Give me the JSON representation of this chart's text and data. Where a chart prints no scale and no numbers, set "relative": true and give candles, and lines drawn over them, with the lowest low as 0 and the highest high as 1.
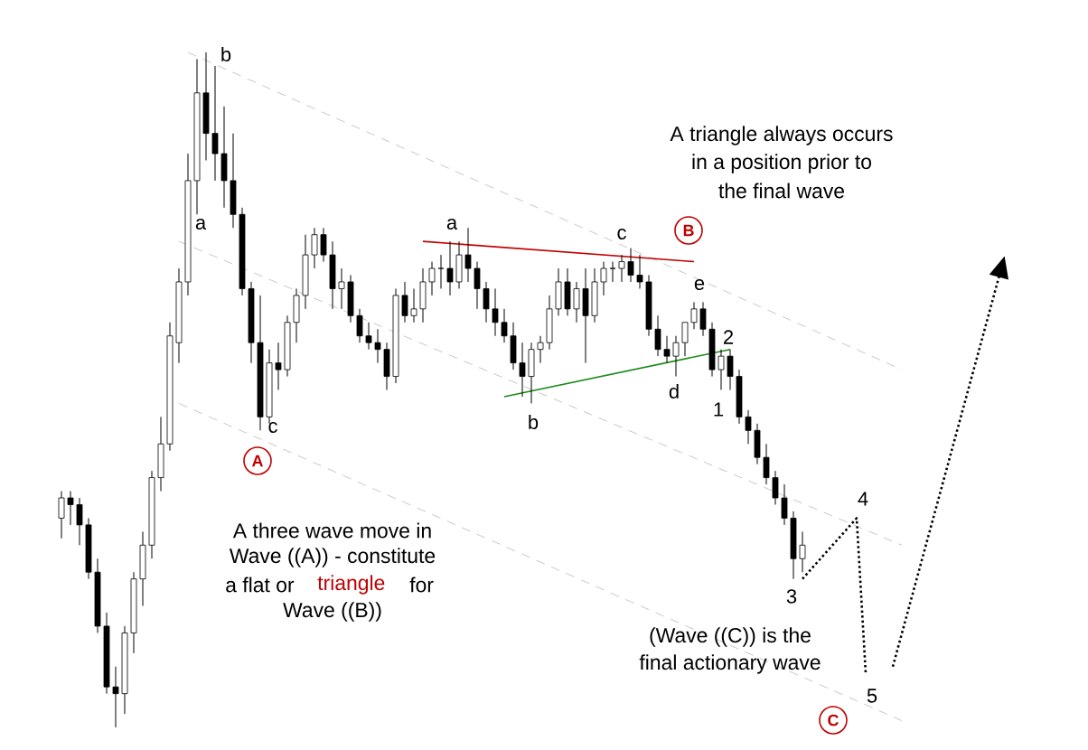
{
  "chart_data": {
    "type": "candlestick",
    "relative": true,
    "categories": [
      null,
      null,
      null,
      null,
      null,
      null,
      null,
      null,
      null,
      null,
      null,
      null,
      null,
      null,
      null,
      null,
      null,
      null,
      null,
      null,
      null,
      null,
      null,
      null,
      null,
      null,
      null,
      null,
      null,
      null,
      null,
      null,
      null,
      null,
      null,
      null,
      null,
      null,
      null,
      null,
      null,
      null,
      null,
      null,
      null,
      null,
      null,
      null,
      null,
      null,
      null,
      null,
      null,
      null,
      null,
      null,
      null,
      null,
      null,
      null,
      null,
      null,
      null,
      null,
      null,
      null,
      null,
      null,
      null,
      null,
      null,
      null,
      null,
      null,
      null,
      null,
      null,
      null,
      null,
      null,
      null,
      null,
      null,
      null,
      null,
      null,
      null,
      null,
      null,
      null,
      null,
      null,
      null,
      null,
      null,
      null,
      null,
      null,
      null,
      null,
      null,
      null,
      null,
      null,
      null
    ],
    "ohlc": [
      [
        0.31,
        0.35,
        0.28,
        0.34
      ],
      [
        0.34,
        0.35,
        0.3,
        0.33
      ],
      [
        0.33,
        0.34,
        0.27,
        0.3
      ],
      [
        0.3,
        0.31,
        0.22,
        0.23
      ],
      [
        0.23,
        0.25,
        0.14,
        0.15
      ],
      [
        0.15,
        0.17,
        0.05,
        0.06
      ],
      [
        0.06,
        0.09,
        0,
        0.05
      ],
      [
        0.05,
        0.15,
        0.02,
        0.14
      ],
      [
        0.14,
        0.23,
        0.11,
        0.22
      ],
      [
        0.22,
        0.29,
        0.18,
        0.27
      ],
      [
        0.27,
        0.38,
        0.25,
        0.37
      ],
      [
        0.37,
        0.46,
        0.35,
        0.42
      ],
      [
        0.42,
        0.6,
        0.41,
        0.58
      ],
      [
        0.57,
        0.68,
        0.54,
        0.66
      ],
      [
        0.66,
        0.85,
        0.64,
        0.81
      ],
      [
        0.81,
        0.99,
        0.76,
        0.94
      ],
      [
        0.94,
        1,
        0.84,
        0.88
      ],
      [
        0.88,
        0.98,
        0.81,
        0.85
      ],
      [
        0.85,
        0.92,
        0.77,
        0.81
      ],
      [
        0.81,
        0.88,
        0.74,
        0.76
      ],
      [
        0.76,
        0.77,
        0.64,
        0.65
      ],
      [
        0.65,
        0.66,
        0.54,
        0.57
      ],
      [
        0.57,
        0.64,
        0.44,
        0.46
      ],
      [
        0.46,
        0.56,
        0.45,
        0.54
      ],
      [
        0.54,
        0.57,
        0.5,
        0.53
      ],
      [
        0.53,
        0.61,
        0.52,
        0.6
      ],
      [
        0.6,
        0.65,
        0.57,
        0.64
      ],
      [
        0.64,
        0.73,
        0.62,
        0.7
      ],
      [
        0.7,
        0.74,
        0.68,
        0.73
      ],
      [
        0.73,
        0.74,
        0.69,
        0.7
      ],
      [
        0.7,
        0.72,
        0.62,
        0.65
      ],
      [
        0.65,
        0.68,
        0.62,
        0.66
      ],
      [
        0.66,
        0.67,
        0.6,
        0.61
      ],
      [
        0.61,
        0.62,
        0.57,
        0.58
      ],
      [
        0.58,
        0.6,
        0.56,
        0.57
      ],
      [
        0.57,
        0.59,
        0.54,
        0.56
      ],
      [
        0.56,
        0.57,
        0.5,
        0.52
      ],
      [
        0.52,
        0.65,
        0.51,
        0.64
      ],
      [
        0.64,
        0.66,
        0.6,
        0.61
      ],
      [
        0.61,
        0.65,
        0.6,
        0.62
      ],
      [
        0.62,
        0.68,
        0.6,
        0.66
      ],
      [
        0.66,
        0.69,
        0.64,
        0.68
      ],
      [
        0.68,
        0.7,
        0.65,
        0.68
      ],
      [
        0.68,
        0.72,
        0.64,
        0.66
      ],
      [
        0.66,
        0.72,
        0.65,
        0.7
      ],
      [
        0.7,
        0.74,
        0.66,
        0.68
      ],
      [
        0.68,
        0.69,
        0.62,
        0.65
      ],
      [
        0.65,
        0.66,
        0.6,
        0.62
      ],
      [
        0.62,
        0.65,
        0.58,
        0.6
      ],
      [
        0.6,
        0.62,
        0.57,
        0.58
      ],
      [
        0.58,
        0.6,
        0.53,
        0.54
      ],
      [
        0.54,
        0.57,
        0.49,
        0.52
      ],
      [
        0.52,
        0.57,
        0.48,
        0.56
      ],
      [
        0.56,
        0.58,
        0.54,
        0.57
      ],
      [
        0.57,
        0.64,
        0.56,
        0.62
      ],
      [
        0.62,
        0.68,
        0.61,
        0.66
      ],
      [
        0.66,
        0.68,
        0.61,
        0.62
      ],
      [
        0.62,
        0.66,
        0.6,
        0.65
      ],
      [
        0.65,
        0.68,
        0.54,
        0.61
      ],
      [
        0.61,
        0.68,
        0.6,
        0.66
      ],
      [
        0.66,
        0.69,
        0.64,
        0.68
      ],
      [
        0.68,
        0.69,
        0.66,
        0.68
      ],
      [
        0.68,
        0.7,
        0.66,
        0.69
      ],
      [
        0.69,
        0.71,
        0.66,
        0.67
      ],
      [
        0.67,
        0.7,
        0.65,
        0.66
      ],
      [
        0.66,
        0.67,
        0.58,
        0.59
      ],
      [
        0.59,
        0.61,
        0.55,
        0.56
      ],
      [
        0.56,
        0.58,
        0.54,
        0.55
      ],
      [
        0.55,
        0.58,
        0.52,
        0.57
      ],
      [
        0.57,
        0.6,
        0.55,
        0.6
      ],
      [
        0.6,
        0.63,
        0.59,
        0.62
      ],
      [
        0.62,
        0.63,
        0.58,
        0.59
      ],
      [
        0.59,
        0.6,
        0.52,
        0.53
      ],
      [
        0.53,
        0.56,
        0.5,
        0.55
      ],
      [
        0.55,
        0.56,
        0.5,
        0.52
      ],
      [
        0.52,
        0.53,
        0.45,
        0.46
      ],
      [
        0.46,
        0.47,
        0.42,
        0.44
      ],
      [
        0.44,
        0.45,
        0.39,
        0.4
      ],
      [
        0.4,
        0.42,
        0.36,
        0.37
      ],
      [
        0.37,
        0.38,
        0.33,
        0.34
      ],
      [
        0.34,
        0.36,
        0.3,
        0.31
      ],
      [
        0.31,
        0.32,
        0.22,
        0.25
      ],
      [
        0.25,
        0.29,
        0.23,
        0.27
      ],
      null,
      null,
      null,
      null,
      null,
      null,
      null,
      null,
      null,
      null,
      null,
      null,
      null,
      null,
      null,
      null,
      null,
      null,
      null,
      null,
      null,
      null
    ],
    "series": [
      {
        "type": "line",
        "color": "#c8c8c8",
        "line_style": "dashed",
        "values": [
          null,
          null,
          null,
          null,
          null,
          null,
          null,
          null,
          null,
          null,
          null,
          null,
          null,
          null,
          1.0,
          null,
          null,
          null,
          null,
          null,
          null,
          null,
          null,
          null,
          null,
          null,
          null,
          null,
          null,
          null,
          null,
          null,
          null,
          null,
          null,
          null,
          null,
          null,
          null,
          null,
          null,
          null,
          null,
          null,
          null,
          null,
          null,
          null,
          null,
          null,
          null,
          null,
          null,
          null,
          null,
          null,
          null,
          null,
          null,
          null,
          null,
          null,
          null,
          null,
          null,
          null,
          null,
          null,
          null,
          null,
          null,
          null,
          null,
          null,
          null,
          null,
          null,
          null,
          null,
          null,
          null,
          null,
          null,
          null,
          null,
          null,
          null,
          null,
          null,
          null,
          null,
          null,
          null,
          0.53,
          null,
          null,
          null,
          null,
          null,
          null,
          null,
          null,
          null,
          null,
          null
        ]
      },
      {
        "type": "line",
        "color": "#c8c8c8",
        "line_style": "dashed",
        "values": [
          null,
          null,
          null,
          null,
          null,
          null,
          null,
          null,
          null,
          null,
          null,
          null,
          null,
          0.72,
          null,
          null,
          null,
          null,
          null,
          null,
          null,
          null,
          null,
          null,
          null,
          null,
          null,
          null,
          null,
          null,
          null,
          null,
          null,
          null,
          null,
          null,
          null,
          null,
          null,
          null,
          null,
          null,
          null,
          null,
          null,
          null,
          null,
          null,
          null,
          null,
          null,
          null,
          null,
          null,
          null,
          null,
          null,
          null,
          null,
          null,
          null,
          null,
          null,
          null,
          null,
          null,
          null,
          null,
          null,
          null,
          null,
          null,
          null,
          null,
          null,
          null,
          null,
          null,
          null,
          null,
          null,
          null,
          null,
          null,
          null,
          null,
          null,
          null,
          null,
          null,
          null,
          null,
          null,
          0.27,
          null,
          null,
          null,
          null,
          null,
          null,
          null,
          null,
          null,
          null,
          null
        ]
      },
      {
        "type": "line",
        "color": "#c8c8c8",
        "line_style": "dashed",
        "values": [
          null,
          null,
          null,
          null,
          null,
          null,
          null,
          null,
          null,
          null,
          null,
          null,
          null,
          0.48,
          null,
          null,
          null,
          null,
          null,
          null,
          null,
          null,
          null,
          null,
          null,
          null,
          null,
          null,
          null,
          null,
          null,
          null,
          null,
          null,
          null,
          null,
          null,
          null,
          null,
          null,
          null,
          null,
          null,
          null,
          null,
          null,
          null,
          null,
          null,
          null,
          null,
          null,
          null,
          null,
          null,
          null,
          null,
          null,
          null,
          null,
          null,
          null,
          null,
          null,
          null,
          null,
          null,
          null,
          null,
          null,
          null,
          null,
          null,
          null,
          null,
          null,
          null,
          null,
          null,
          null,
          null,
          null,
          null,
          null,
          null,
          null,
          null,
          null,
          null,
          null,
          null,
          null,
          null,
          0.01,
          null,
          null,
          null,
          null,
          null,
          null,
          null,
          null,
          null,
          null,
          null
        ]
      },
      {
        "type": "line",
        "color": "#c00000",
        "line_style": "solid",
        "values": [
          null,
          null,
          null,
          null,
          null,
          null,
          null,
          null,
          null,
          null,
          null,
          null,
          null,
          null,
          null,
          null,
          null,
          null,
          null,
          null,
          null,
          null,
          null,
          null,
          null,
          null,
          null,
          null,
          null,
          null,
          null,
          null,
          null,
          null,
          null,
          null,
          null,
          null,
          null,
          null,
          0.72,
          null,
          null,
          null,
          null,
          null,
          null,
          null,
          null,
          null,
          null,
          null,
          null,
          null,
          null,
          null,
          null,
          null,
          null,
          null,
          null,
          null,
          null,
          null,
          null,
          null,
          null,
          null,
          null,
          null,
          0.69,
          null,
          null,
          null,
          null,
          null,
          null,
          null,
          null,
          null,
          null,
          null,
          null,
          null,
          null,
          null,
          null,
          null,
          null,
          null,
          null,
          null,
          null,
          null,
          null,
          null,
          null,
          null,
          null,
          null,
          null,
          null,
          null,
          null,
          null
        ]
      },
      {
        "type": "line",
        "color": "#1a8a1a",
        "line_style": "solid",
        "values": [
          null,
          null,
          null,
          null,
          null,
          null,
          null,
          null,
          null,
          null,
          null,
          null,
          null,
          null,
          null,
          null,
          null,
          null,
          null,
          null,
          null,
          null,
          null,
          null,
          null,
          null,
          null,
          null,
          null,
          null,
          null,
          null,
          null,
          null,
          null,
          null,
          null,
          null,
          null,
          null,
          null,
          null,
          null,
          null,
          null,
          null,
          null,
          null,
          null,
          0.49,
          null,
          null,
          null,
          null,
          null,
          null,
          null,
          null,
          null,
          null,
          null,
          null,
          null,
          null,
          null,
          null,
          null,
          null,
          null,
          null,
          null,
          null,
          null,
          null,
          0.56,
          null,
          null,
          null,
          null,
          null,
          null,
          null,
          null,
          null,
          null,
          null,
          null,
          null,
          null,
          null,
          null,
          null,
          null,
          null,
          null,
          null,
          null,
          null,
          null,
          null,
          null,
          null,
          null,
          null,
          null
        ]
      },
      {
        "type": "line",
        "color": "#000000",
        "line_style": "dotted",
        "values": [
          null,
          null,
          null,
          null,
          null,
          null,
          null,
          null,
          null,
          null,
          null,
          null,
          null,
          null,
          null,
          null,
          null,
          null,
          null,
          null,
          null,
          null,
          null,
          null,
          null,
          null,
          null,
          null,
          null,
          null,
          null,
          null,
          null,
          null,
          null,
          null,
          null,
          null,
          null,
          null,
          null,
          null,
          null,
          null,
          null,
          null,
          null,
          null,
          null,
          null,
          null,
          null,
          null,
          null,
          null,
          null,
          null,
          null,
          null,
          null,
          null,
          null,
          null,
          null,
          null,
          null,
          null,
          null,
          null,
          null,
          null,
          null,
          null,
          null,
          null,
          null,
          null,
          null,
          null,
          null,
          null,
          null,
          0.22,
          null,
          null,
          null,
          null,
          null,
          0.31,
          0.08,
          null,
          null,
          null,
          null,
          null,
          null,
          null,
          null,
          null,
          null,
          null,
          null,
          null,
          null,
          null
        ]
      },
      {
        "type": "line",
        "color": "#000000",
        "line_style": "dotted",
        "values": [
          null,
          null,
          null,
          null,
          null,
          null,
          null,
          null,
          null,
          null,
          null,
          null,
          null,
          null,
          null,
          null,
          null,
          null,
          null,
          null,
          null,
          null,
          null,
          null,
          null,
          null,
          null,
          null,
          null,
          null,
          null,
          null,
          null,
          null,
          null,
          null,
          null,
          null,
          null,
          null,
          null,
          null,
          null,
          null,
          null,
          null,
          null,
          null,
          null,
          null,
          null,
          null,
          null,
          null,
          null,
          null,
          null,
          null,
          null,
          null,
          null,
          null,
          null,
          null,
          null,
          null,
          null,
          null,
          null,
          null,
          null,
          null,
          null,
          null,
          null,
          null,
          null,
          null,
          null,
          null,
          null,
          null,
          null,
          null,
          null,
          null,
          null,
          null,
          null,
          null,
          null,
          null,
          0.09,
          null,
          null,
          null,
          null,
          null,
          null,
          null,
          null,
          null,
          null,
          null,
          0.68
        ]
      }
    ],
    "annotations": [
      "b",
      "a",
      "c",
      "A",
      "a",
      "b",
      "c",
      "B",
      "e",
      "2",
      "d",
      "1",
      "3",
      "4",
      "5",
      "C",
      "A triangle always occurs",
      "in a position prior to",
      "the final wave",
      "A three wave move in",
      "Wave ((A)) - constitute",
      "a flat or",
      "triangle",
      "for",
      "Wave ((B))",
      "(Wave ((C)) is the",
      "final actionary wave"
    ]
  }
}
